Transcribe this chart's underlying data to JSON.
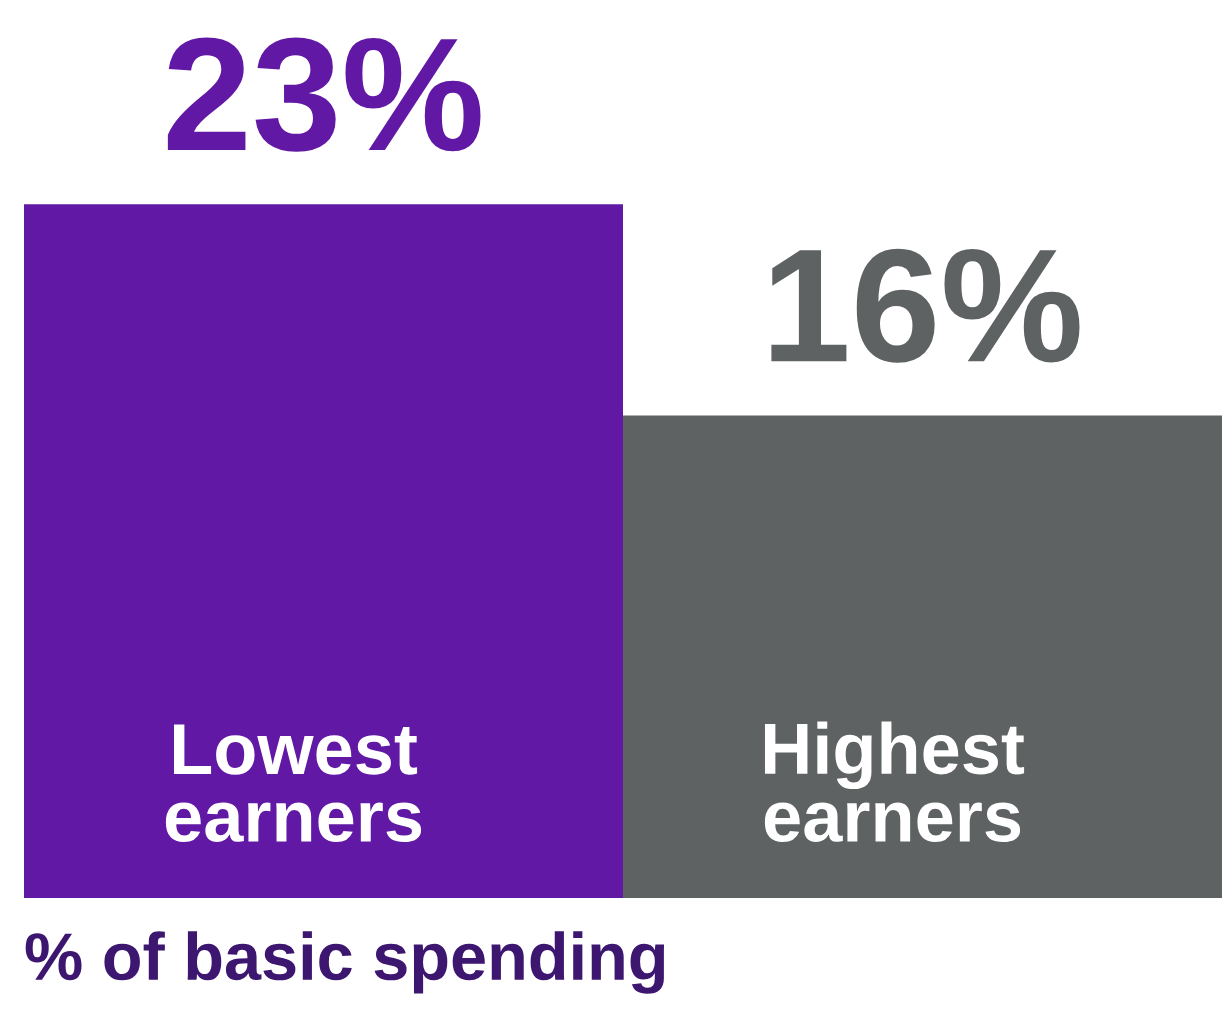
{
  "chart_data": {
    "type": "bar",
    "categories": [
      "Lowest\nearners",
      "Highest\nearners"
    ],
    "values": [
      23,
      16
    ],
    "colors": [
      "#6118a5",
      "#5e6262"
    ],
    "value_labels": [
      "23%",
      "16%"
    ],
    "xlabel": "% of basic spending"
  }
}
